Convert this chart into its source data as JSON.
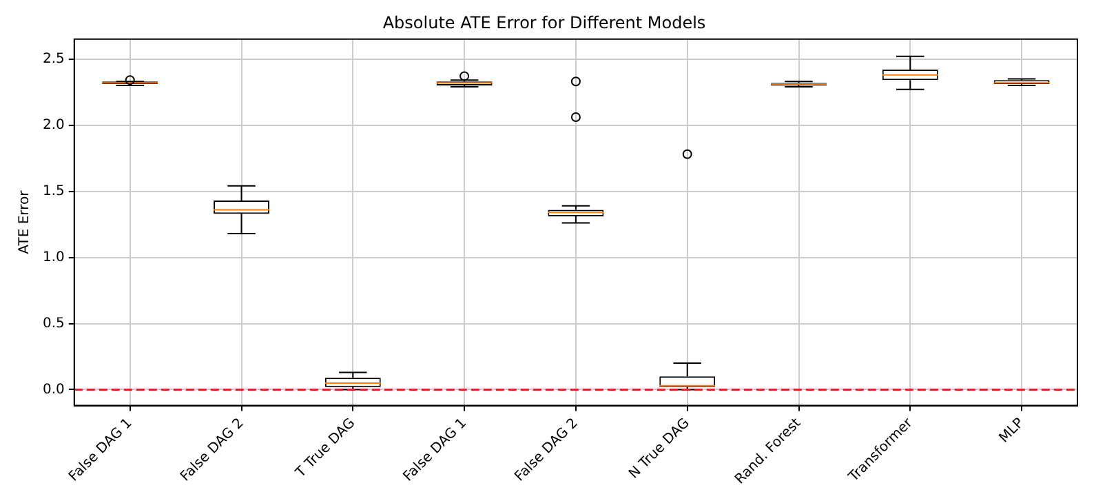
{
  "chart_data": {
    "type": "box",
    "title": "Absolute ATE Error for Different Models",
    "ylabel": "ATE Error",
    "categories": [
      "False DAG 1",
      "False DAG 2",
      "T True DAG",
      "False DAG 1",
      "False DAG 2",
      "N True DAG",
      "Rand. Forest",
      "Transformer",
      "MLP"
    ],
    "boxes": [
      {
        "low": 2.3,
        "q1": 2.31,
        "median": 2.32,
        "q3": 2.33,
        "high": 2.33,
        "outliers": [
          2.34
        ]
      },
      {
        "low": 1.18,
        "q1": 1.33,
        "median": 1.36,
        "q3": 1.43,
        "high": 1.54
      },
      {
        "low": 0.0,
        "q1": 0.02,
        "median": 0.05,
        "q3": 0.09,
        "high": 0.13
      },
      {
        "low": 2.29,
        "q1": 2.3,
        "median": 2.32,
        "q3": 2.33,
        "high": 2.34,
        "outliers": [
          2.37
        ]
      },
      {
        "low": 1.26,
        "q1": 1.31,
        "median": 1.34,
        "q3": 1.36,
        "high": 1.39,
        "outliers": [
          2.33,
          2.06
        ]
      },
      {
        "low": 0.0,
        "q1": 0.02,
        "median": 0.03,
        "q3": 0.1,
        "high": 0.2,
        "outliers": [
          1.78
        ]
      },
      {
        "low": 2.29,
        "q1": 2.3,
        "median": 2.31,
        "q3": 2.32,
        "high": 2.33
      },
      {
        "low": 2.27,
        "q1": 2.34,
        "median": 2.38,
        "q3": 2.42,
        "high": 2.52
      },
      {
        "low": 2.3,
        "q1": 2.31,
        "median": 2.32,
        "q3": 2.34,
        "high": 2.35
      }
    ],
    "color": "#000000",
    "ylim": [
      -0.12,
      2.65
    ],
    "yticks": [
      {
        "value": 0,
        "label": "0.0"
      },
      {
        "value": 0.5,
        "label": "0.5"
      },
      {
        "value": 1,
        "label": "1.0"
      },
      {
        "value": 1.5,
        "label": "1.5"
      },
      {
        "value": 2,
        "label": "2.0"
      },
      {
        "value": 2.5,
        "label": "2.5"
      }
    ],
    "ref_lines": [
      {
        "axis": "y",
        "value": 0,
        "color": "#d62728",
        "line_style": "dashed"
      }
    ],
    "grid": true,
    "legend": false
  }
}
